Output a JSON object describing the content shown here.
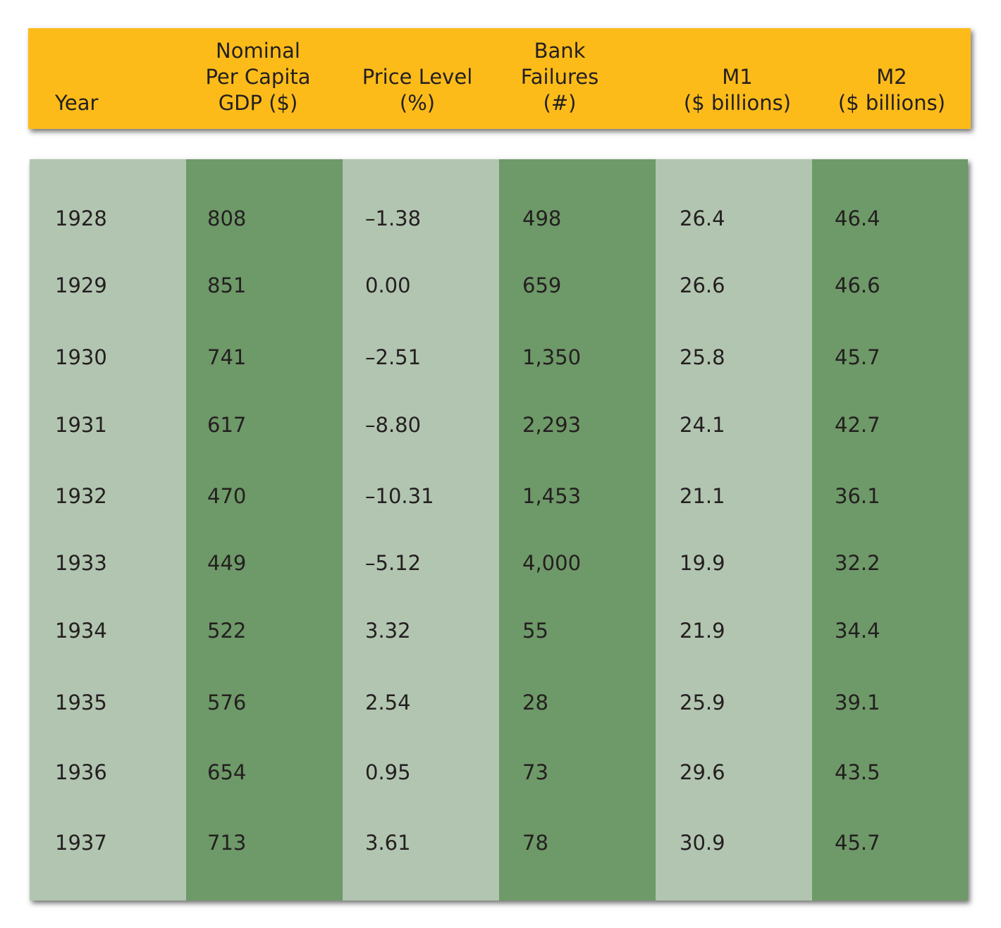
{
  "headers": [
    "Year",
    "Nominal\nPer Capita\nGDP ($)",
    "Price Level\n(%)",
    "Bank\nFailures\n(#)",
    "M1\n($ billions)",
    "M2\n($ billions)"
  ],
  "rows": [
    [
      "1928",
      "808",
      "–1.38",
      "498",
      "26.4",
      "46.4"
    ],
    [
      "1929",
      "851",
      "0.00",
      "659",
      "26.6",
      "46.6"
    ],
    [
      "1930",
      "741",
      "–2.51",
      "1,350",
      "25.8",
      "45.7"
    ],
    [
      "1931",
      "617",
      "–8.80",
      "2,293",
      "24.1",
      "42.7"
    ],
    [
      "1932",
      "470",
      "–10.31",
      "1,453",
      "21.1",
      "36.1"
    ],
    [
      "1933",
      "449",
      "–5.12",
      "4,000",
      "19.9",
      "32.2"
    ],
    [
      "1934",
      "522",
      "3.32",
      "55",
      "21.9",
      "34.4"
    ],
    [
      "1935",
      "576",
      "2.54",
      "28",
      "25.9",
      "39.1"
    ],
    [
      "1936",
      "654",
      "0.95",
      "73",
      "29.6",
      "43.5"
    ],
    [
      "1937",
      "713",
      "3.61",
      "78",
      "30.9",
      "45.7"
    ]
  ],
  "colors": {
    "header_bg": "#fcbb19",
    "column_light": "#b2c5b0",
    "column_dark": "#6e9968",
    "text": "#231f20"
  }
}
